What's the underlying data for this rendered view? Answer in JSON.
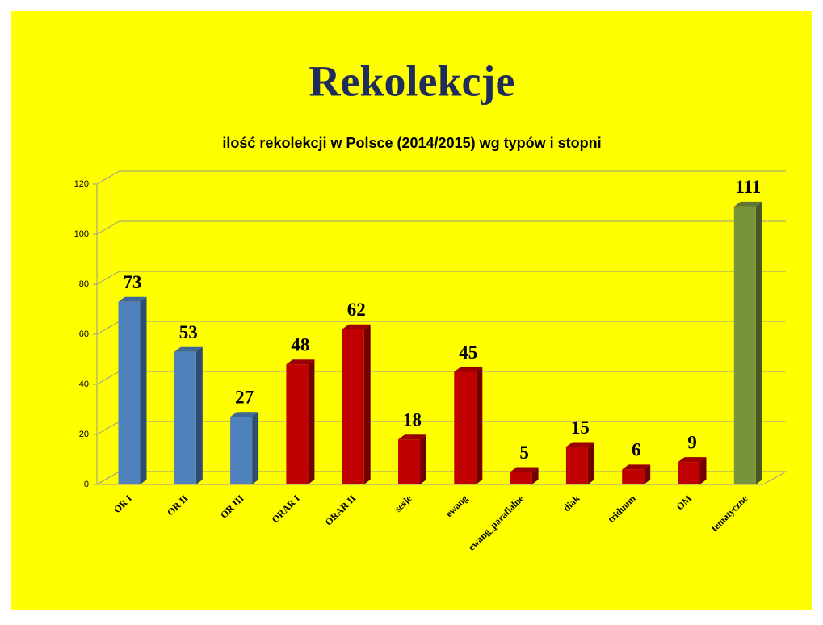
{
  "chart_data": {
    "type": "bar3d",
    "title": "Rekolekcje",
    "subtitle": "ilość rekolekcji w Polsce (2014/2015) wg typów i stopni",
    "categories": [
      "OR I",
      "OR II",
      "OR III",
      "ORAR I",
      "ORAR II",
      "sesje",
      "ewang",
      "ewang_parafialne",
      "diak",
      "triduum",
      "OM",
      "tematyczne"
    ],
    "values": [
      73,
      53,
      27,
      48,
      62,
      18,
      45,
      5,
      15,
      6,
      9,
      111
    ],
    "colors": [
      "#4f81bd",
      "#4f81bd",
      "#4f81bd",
      "#c00000",
      "#c00000",
      "#c00000",
      "#c00000",
      "#c00000",
      "#c00000",
      "#c00000",
      "#c00000",
      "#77933c"
    ],
    "ylim": [
      0,
      120
    ],
    "yticks": [
      0,
      20,
      40,
      60,
      80,
      100,
      120
    ],
    "grid": true
  }
}
